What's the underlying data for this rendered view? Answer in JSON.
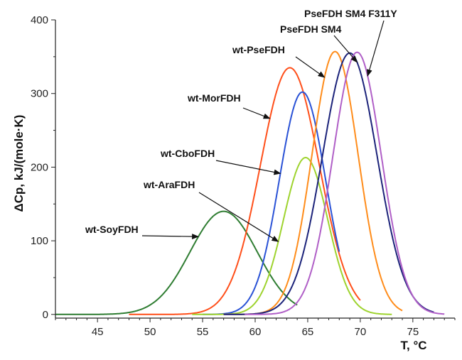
{
  "chart_data": {
    "type": "line",
    "title": "",
    "xlabel_main": "T, ",
    "xlabel_unit": "°C",
    "ylabel": "ΔCp, kJ/(mole·K)",
    "xlim": [
      41,
      79
    ],
    "ylim": [
      -5,
      400
    ],
    "xticks": [
      "45",
      "50",
      "55",
      "60",
      "65",
      "70",
      "75"
    ],
    "yticks": [
      "0",
      "100",
      "200",
      "300",
      "400"
    ],
    "grid": false,
    "series": [
      {
        "name": "wt-SoyFDH",
        "color": "#2f7d32",
        "x_range": [
          41,
          64
        ],
        "peak": 57.0,
        "height": 140,
        "width": 3.2
      },
      {
        "name": "wt-MorFDH",
        "color": "#ff4f1a",
        "x_range": [
          48,
          70
        ],
        "peak": 63.3,
        "height": 335,
        "width": 2.8
      },
      {
        "name": "wt-CboFDH",
        "color": "#2a52d6",
        "x_range": [
          55,
          68
        ],
        "peak": 64.5,
        "height": 302,
        "width": 2.2
      },
      {
        "name": "wt-AraFDH",
        "color": "#9ed32e",
        "x_range": [
          54,
          73
        ],
        "peak": 64.8,
        "height": 213,
        "width": 2.1
      },
      {
        "name": "PseFDH SM4",
        "color": "#ff8c1a",
        "x_range": [
          57,
          74
        ],
        "peak": 67.6,
        "height": 357,
        "width": 2.2
      },
      {
        "name": "wt-PseFDH",
        "color": "#1c237a",
        "x_range": [
          57,
          77
        ],
        "peak": 69.0,
        "height": 355,
        "width": 2.6
      },
      {
        "name": "PseFDH SM4 F311Y",
        "color": "#b05fc7",
        "x_range": [
          59,
          78
        ],
        "peak": 69.7,
        "height": 356,
        "width": 2.3
      }
    ],
    "annotations": [
      {
        "text": "PseFDH SM4 F311Y",
        "series": "PseFDH SM4 F311Y"
      },
      {
        "text": "PseFDH SM4",
        "series": "wt-PseFDH"
      },
      {
        "text": "wt-PseFDH",
        "series": "PseFDH SM4"
      },
      {
        "text": "wt-MorFDH",
        "series": "wt-MorFDH"
      },
      {
        "text": "wt-CboFDH",
        "series": "wt-CboFDH"
      },
      {
        "text": "wt-AraFDH",
        "series": "wt-AraFDH"
      },
      {
        "text": "wt-SoyFDH",
        "series": "wt-SoyFDH"
      }
    ]
  }
}
